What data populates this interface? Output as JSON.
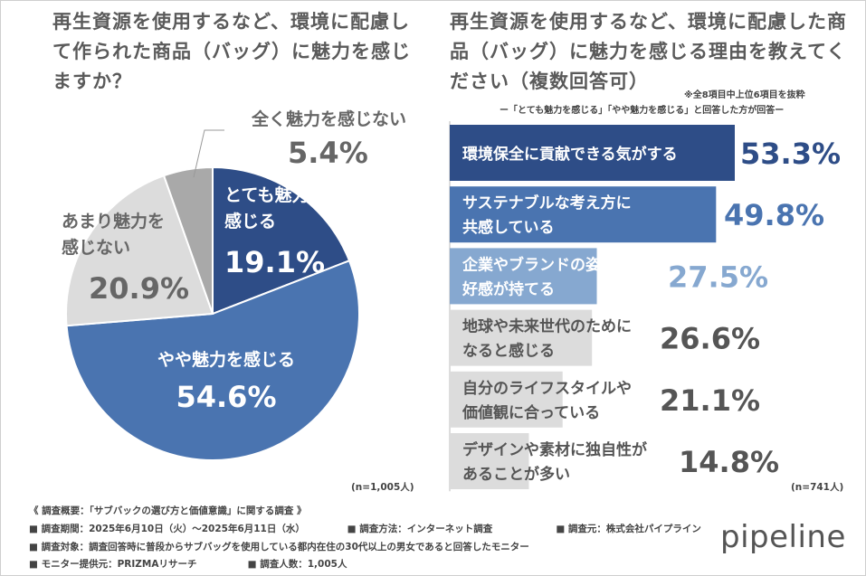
{
  "left_title": "再生資源を使用するなど、環境に配慮して作られた商品（バッグ）に魅力を感じますか？",
  "right_title": "再生資源を使用するなど、環境に配慮した商品（バッグ）に魅力を感じる理由を教えてください（複数回答可）",
  "right_note": "※全8項目中上位6項目を抜粋",
  "right_subnote": "ー「とても魅力を感じる」「やや魅力を感じる」と回答した方が回答ー",
  "left_n": "(n=1,005人)",
  "right_n": "(n=741人)",
  "footer": {
    "summary": "《 調査概要：「サブバックの選び方と価値意識」に関する調査 》",
    "period": "■ 調査期間：2025年6月10日（火）～2025年6月11日（水）",
    "method": "■ 調査方法：インターネット調査",
    "source": "■ 調査元：株式会社パイプライン",
    "target": "■ 調査対象：調査回答時に普段からサブバッグを使用している都内在住の30代以上の男女であると回答したモニター",
    "provider": "■ モニター提供元：PRIZMAリサーチ",
    "count": "■ 調査人数：1,005人"
  },
  "logo": "pipeline",
  "chart_data": [
    {
      "type": "pie",
      "title": "再生資源を使用するなど、環境に配慮して作られた商品（バッグ）に魅力を感じますか？",
      "slices": [
        {
          "label": "とても魅力を感じる",
          "value": 19.1,
          "display": "19.1%",
          "color": "#2e4d87"
        },
        {
          "label": "やや魅力を感じる",
          "value": 54.6,
          "display": "54.6%",
          "color": "#4a74b0"
        },
        {
          "label": "あまり魅力を感じない",
          "value": 20.9,
          "display": "20.9%",
          "color": "#dcdcdc"
        },
        {
          "label": "全く魅力を感じない",
          "value": 5.4,
          "display": "5.4%",
          "color": "#a9a9a9"
        }
      ]
    },
    {
      "type": "bar",
      "orientation": "horizontal",
      "title": "再生資源を使用するなど、環境に配慮した商品（バッグ）に魅力を感じる理由を教えてください（複数回答可）",
      "categories": [
        "環境保全に貢献できる気がする",
        "サステナブルな考え方に共感している",
        "企業やブランドの姿勢に好感が持てる",
        "地球や未来世代のためになると感じる",
        "自分のライフスタイルや価値観に合っている",
        "デザインや素材に独自性があることが多い"
      ],
      "label_lines": [
        [
          "環境保全に貢献できる気がする"
        ],
        [
          "サステナブルな考え方に",
          "共感している"
        ],
        [
          "企業やブランドの姿勢に",
          "好感が持てる"
        ],
        [
          "地球や未来世代のために",
          "なると感じる"
        ],
        [
          "自分のライフスタイルや",
          "価値観に合っている"
        ],
        [
          "デザインや素材に独自性が",
          "あることが多い"
        ]
      ],
      "values": [
        53.3,
        49.8,
        27.5,
        26.6,
        21.1,
        14.8
      ],
      "value_labels": [
        "53.3%",
        "49.8%",
        "27.5%",
        "26.6%",
        "21.1%",
        "14.8%"
      ],
      "colors": [
        "#2e4d87",
        "#4a74b0",
        "#86a8d0",
        "#dcdcdc",
        "#dcdcdc",
        "#dcdcdc"
      ],
      "value_colors": [
        "#2e4d87",
        "#4a74b0",
        "#86a8d0",
        "#555555",
        "#555555",
        "#555555"
      ],
      "label_colors": [
        "#ffffff",
        "#ffffff",
        "#ffffff",
        "#555555",
        "#555555",
        "#555555"
      ]
    }
  ]
}
